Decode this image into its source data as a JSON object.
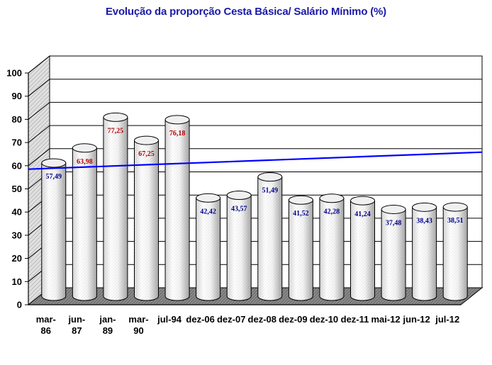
{
  "chart_data": {
    "type": "bar",
    "title": "Evolução da proporção Cesta Básica/ Salário Mínimo (%)",
    "categories": [
      [
        "mar-",
        "86"
      ],
      [
        "jun-",
        "87"
      ],
      [
        "jan-",
        "89"
      ],
      [
        "mar-",
        "90"
      ],
      [
        "jul-94"
      ],
      [
        "dez-06"
      ],
      [
        "dez-07"
      ],
      [
        "dez-08"
      ],
      [
        "dez-09"
      ],
      [
        "dez-10"
      ],
      [
        "dez-11"
      ],
      [
        "mai-12"
      ],
      [
        "jun-12"
      ],
      [
        "jul-12"
      ]
    ],
    "values": [
      57.49,
      63.98,
      77.25,
      67.25,
      76.18,
      42.42,
      43.57,
      51.49,
      41.52,
      42.28,
      41.24,
      37.48,
      38.43,
      38.51
    ],
    "data_labels": [
      "57,49",
      "63,98",
      "77,25",
      "67,25",
      "76,18",
      "42,42",
      "43,57",
      "51,49",
      "41,52",
      "42,28",
      "41,24",
      "37,48",
      "38,43",
      "38,51"
    ],
    "reference_line": 58.5,
    "ylim": [
      0,
      100
    ],
    "yticks": [
      "0",
      "10",
      "20",
      "30",
      "40",
      "50",
      "60",
      "70",
      "80",
      "90",
      "100"
    ],
    "bar_shape": "cylinder",
    "grid": true,
    "colors": {
      "title": "#1a1aa8",
      "reference_line": "#0000ff",
      "label_above": "#b00000",
      "label_below": "#00008b",
      "floor": "#808080",
      "wall": "#d4d4d4",
      "bar": "#ffffff"
    }
  }
}
